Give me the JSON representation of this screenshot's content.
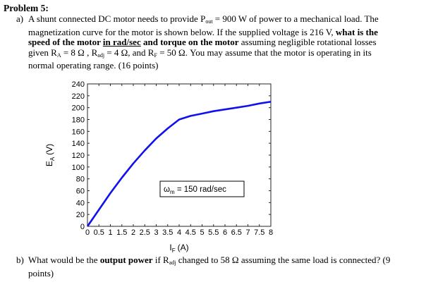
{
  "problem_title": "Problem 5:",
  "part_a": {
    "label": "a)",
    "t1": "A shunt connected DC motor needs to provide P",
    "pout_sub": "out",
    "t2": " = 900 W of power to a mechanical load.  The magnetization curve for the motor is shown below.  If the supplied voltage is 216 V, ",
    "bold1": "what is the speed of the motor ",
    "underline1": "in rad/sec",
    "bold2": " and torque on the motor",
    "t3": " assuming negligible rotational losses given R",
    "ra_sub": "A",
    "t4": " = 8 Ω , R",
    "radj_sub": "adj",
    "t5": " = 4 Ω, and R",
    "rf_sub": "F",
    "t6": " = 50 Ω. You may assume that the motor is operating in its normal operating range.  (16 points)"
  },
  "part_b": {
    "label": "b)",
    "t1": "What would be the ",
    "bold1": "output power",
    "t2": " if R",
    "radj_sub": "adj",
    "t3": " changed to 58 Ω assuming the same load is connected? (9 points)"
  },
  "chart_data": {
    "type": "line",
    "xlabel": "I",
    "xlabel_sub": "F",
    "xlabel_unit": "(A)",
    "ylabel": "E",
    "ylabel_sub": "A",
    "ylabel_unit": "(V)",
    "xlim": [
      0,
      8
    ],
    "ylim": [
      0,
      240
    ],
    "x_ticks": [
      0,
      0.5,
      1,
      1.5,
      2,
      2.5,
      3,
      3.5,
      4,
      4.5,
      5,
      5.5,
      6,
      6.5,
      7,
      7.5,
      8
    ],
    "x_tick_labels": [
      "0",
      "0.5",
      "1",
      "1.5",
      "2",
      "2.5",
      "3",
      "3.5",
      "4",
      "4.5",
      "5",
      "5.5",
      "6",
      "6.5",
      "7",
      "7.5",
      "8"
    ],
    "y_ticks": [
      0,
      20,
      40,
      60,
      80,
      100,
      120,
      140,
      160,
      180,
      200,
      220,
      240
    ],
    "y_tick_labels": [
      "0",
      "20",
      "40",
      "60",
      "80",
      "100",
      "120",
      "140",
      "160",
      "180",
      "200",
      "220",
      "240"
    ],
    "grid": false,
    "line_color": "#1111ee",
    "series": [
      {
        "x": [
          0,
          0.5,
          1.0,
          1.5,
          2.0,
          2.5,
          3.0,
          3.5,
          4.0,
          4.5,
          5.0,
          5.5,
          6.0,
          6.5,
          7.0,
          7.5,
          8.0
        ],
        "values": [
          0,
          28,
          56,
          82,
          106,
          128,
          148,
          165,
          180,
          186,
          190,
          194,
          197,
          200,
          203,
          207,
          210
        ]
      }
    ],
    "annotation": {
      "symbol": "ω",
      "symbol_sub": "m",
      "text": " = 150 rad/sec"
    }
  }
}
